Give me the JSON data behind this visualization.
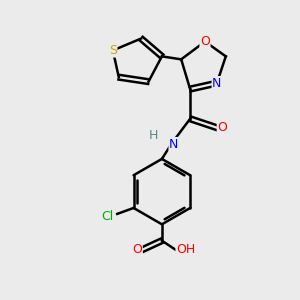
{
  "background_color": "#ebebeb",
  "bond_color": "#000000",
  "atom_colors": {
    "O": "#ff0000",
    "N": "#0000ff",
    "S": "#ccaa00",
    "Cl": "#00aa00",
    "H": "#558888",
    "C": "#000000"
  },
  "figsize": [
    3.0,
    3.0
  ],
  "dpi": 100
}
